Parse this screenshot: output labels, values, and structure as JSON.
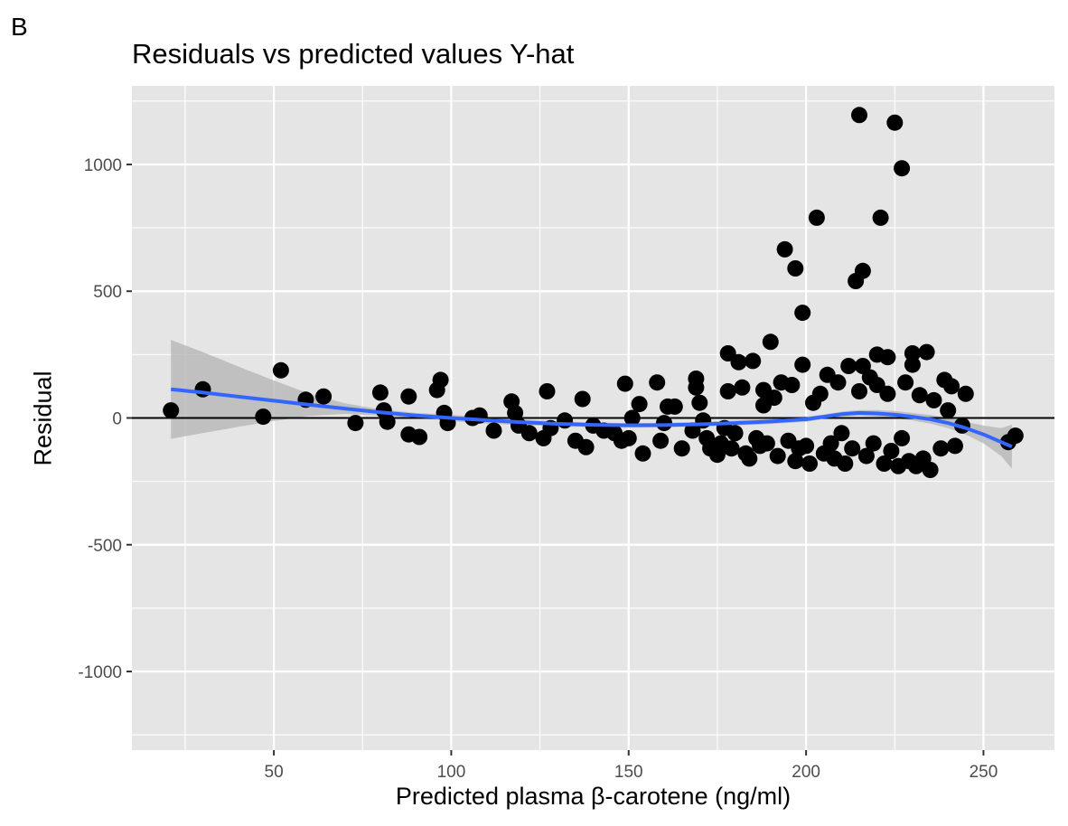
{
  "panel_letter": "B",
  "colors": {
    "panel_background": "#e5e5e5",
    "grid": "#ffffff",
    "points": "#000000",
    "smooth_line": "#3366ff",
    "confidence_band": "#b3b3b3",
    "zero_line": "#000000"
  },
  "chart_data": {
    "type": "scatter",
    "title": "Residuals vs predicted values Y-hat",
    "xlabel": "Predicted plasma β-carotene (ng/ml)",
    "ylabel": "Residual",
    "xlim": [
      10,
      270
    ],
    "ylim": [
      -1310,
      1310
    ],
    "x_ticks": [
      50,
      100,
      150,
      200,
      250
    ],
    "x_tick_labels": [
      "50",
      "100",
      "150",
      "200",
      "250"
    ],
    "y_ticks": [
      -1000,
      -500,
      0,
      500,
      1000
    ],
    "y_tick_labels": [
      "-1000",
      "-500",
      "0",
      "500",
      "1000"
    ],
    "grid": true,
    "reference_line_y": 0,
    "smooth": {
      "method": "loess",
      "x": [
        21,
        30,
        40,
        50,
        60,
        70,
        80,
        90,
        100,
        110,
        120,
        130,
        140,
        150,
        160,
        170,
        180,
        190,
        200,
        205,
        210,
        215,
        220,
        225,
        230,
        235,
        240,
        245,
        250,
        255,
        258
      ],
      "y": [
        113,
        100,
        84,
        68,
        52,
        37,
        22,
        10,
        0,
        -9,
        -17,
        -23,
        -27,
        -29,
        -28,
        -25,
        -20,
        -14,
        -5,
        5,
        15,
        20,
        18,
        13,
        5,
        -5,
        -20,
        -40,
        -65,
        -95,
        -113
      ],
      "lower": [
        -82,
        -60,
        -35,
        -12,
        8,
        16,
        10,
        0,
        -12,
        -22,
        -28,
        -33,
        -36,
        -38,
        -37,
        -34,
        -30,
        -24,
        -15,
        -4,
        5,
        9,
        5,
        -1,
        -10,
        -22,
        -40,
        -65,
        -100,
        -150,
        -200
      ],
      "upper": [
        308,
        260,
        203,
        148,
        96,
        58,
        34,
        20,
        12,
        4,
        -6,
        -13,
        -18,
        -20,
        -19,
        -16,
        -10,
        -4,
        5,
        14,
        25,
        31,
        31,
        27,
        20,
        12,
        0,
        -15,
        -30,
        -40,
        -26
      ]
    },
    "series": [
      {
        "points": [
          [
            21,
            30
          ],
          [
            30,
            113
          ],
          [
            47,
            5
          ],
          [
            52,
            188
          ],
          [
            59,
            72
          ],
          [
            64,
            85
          ],
          [
            73,
            -20
          ],
          [
            80,
            100
          ],
          [
            81,
            30
          ],
          [
            82,
            -15
          ],
          [
            88,
            85
          ],
          [
            88,
            -65
          ],
          [
            91,
            -75
          ],
          [
            96,
            110
          ],
          [
            97,
            150
          ],
          [
            98,
            20
          ],
          [
            99,
            -20
          ],
          [
            106,
            0
          ],
          [
            108,
            10
          ],
          [
            112,
            -50
          ],
          [
            117,
            65
          ],
          [
            118,
            20
          ],
          [
            119,
            -30
          ],
          [
            122,
            -60
          ],
          [
            126,
            -80
          ],
          [
            127,
            105
          ],
          [
            128,
            -40
          ],
          [
            132,
            -10
          ],
          [
            135,
            -90
          ],
          [
            137,
            75
          ],
          [
            138,
            -115
          ],
          [
            140,
            -30
          ],
          [
            143,
            -50
          ],
          [
            146,
            -60
          ],
          [
            148,
            -90
          ],
          [
            149,
            135
          ],
          [
            150,
            -80
          ],
          [
            151,
            0
          ],
          [
            153,
            55
          ],
          [
            154,
            -140
          ],
          [
            158,
            140
          ],
          [
            159,
            -90
          ],
          [
            160,
            -20
          ],
          [
            161,
            45
          ],
          [
            163,
            45
          ],
          [
            165,
            -120
          ],
          [
            168,
            -50
          ],
          [
            169,
            155
          ],
          [
            169,
            120
          ],
          [
            170,
            60
          ],
          [
            171,
            -10
          ],
          [
            172,
            -80
          ],
          [
            173,
            -120
          ],
          [
            175,
            -145
          ],
          [
            176,
            -100
          ],
          [
            177,
            -40
          ],
          [
            178,
            255
          ],
          [
            178,
            105
          ],
          [
            179,
            -120
          ],
          [
            180,
            -60
          ],
          [
            181,
            220
          ],
          [
            182,
            120
          ],
          [
            183,
            -140
          ],
          [
            184,
            -160
          ],
          [
            185,
            225
          ],
          [
            186,
            -80
          ],
          [
            187,
            -110
          ],
          [
            188,
            50
          ],
          [
            188,
            110
          ],
          [
            189,
            -100
          ],
          [
            190,
            300
          ],
          [
            191,
            80
          ],
          [
            192,
            -150
          ],
          [
            193,
            140
          ],
          [
            194,
            665
          ],
          [
            195,
            -90
          ],
          [
            196,
            130
          ],
          [
            197,
            590
          ],
          [
            197,
            -170
          ],
          [
            198,
            -120
          ],
          [
            199,
            415
          ],
          [
            199,
            210
          ],
          [
            200,
            -110
          ],
          [
            201,
            -180
          ],
          [
            202,
            60
          ],
          [
            203,
            790
          ],
          [
            204,
            95
          ],
          [
            205,
            -140
          ],
          [
            206,
            170
          ],
          [
            207,
            -100
          ],
          [
            208,
            -160
          ],
          [
            209,
            140
          ],
          [
            210,
            -60
          ],
          [
            211,
            -180
          ],
          [
            212,
            205
          ],
          [
            213,
            -120
          ],
          [
            214,
            540
          ],
          [
            215,
            105
          ],
          [
            215,
            1195
          ],
          [
            216,
            580
          ],
          [
            216,
            205
          ],
          [
            217,
            -150
          ],
          [
            218,
            160
          ],
          [
            219,
            -100
          ],
          [
            220,
            250
          ],
          [
            220,
            130
          ],
          [
            221,
            790
          ],
          [
            222,
            -180
          ],
          [
            223,
            95
          ],
          [
            223,
            240
          ],
          [
            224,
            -130
          ],
          [
            225,
            1165
          ],
          [
            226,
            -190
          ],
          [
            227,
            985
          ],
          [
            227,
            -80
          ],
          [
            228,
            140
          ],
          [
            229,
            -170
          ],
          [
            230,
            255
          ],
          [
            230,
            210
          ],
          [
            231,
            -190
          ],
          [
            232,
            90
          ],
          [
            233,
            -160
          ],
          [
            234,
            260
          ],
          [
            235,
            -205
          ],
          [
            236,
            70
          ],
          [
            238,
            -120
          ],
          [
            239,
            150
          ],
          [
            240,
            30
          ],
          [
            241,
            125
          ],
          [
            242,
            -110
          ],
          [
            244,
            -30
          ],
          [
            245,
            95
          ],
          [
            257,
            -95
          ],
          [
            259,
            -70
          ]
        ]
      }
    ]
  }
}
